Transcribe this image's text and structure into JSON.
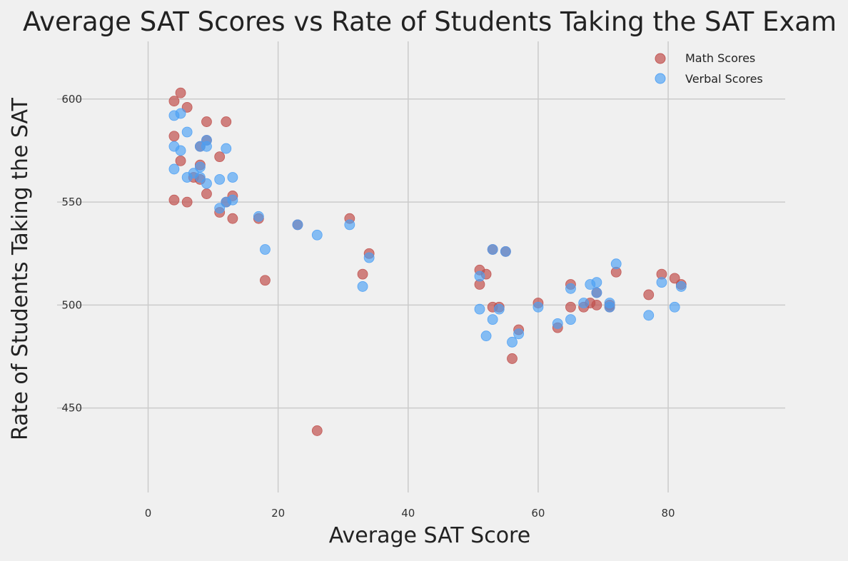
{
  "chart_data": {
    "type": "scatter",
    "title": "Average SAT Scores vs Rate of Students Taking the SAT Exam",
    "xlabel": "Average SAT Score",
    "ylabel": "Rate of Students Taking the SAT",
    "xlim": [
      -14,
      98
    ],
    "ylim": [
      409,
      628
    ],
    "xticks": [
      0,
      20,
      40,
      60,
      80
    ],
    "yticks": [
      450,
      500,
      550,
      600
    ],
    "grid": true,
    "legend_position": "top-right",
    "series": [
      {
        "name": "Math Scores",
        "color": "#c0504d",
        "points": [
          [
            4,
            599
          ],
          [
            5,
            603
          ],
          [
            6,
            596
          ],
          [
            4,
            582
          ],
          [
            9,
            589
          ],
          [
            12,
            589
          ],
          [
            8,
            577
          ],
          [
            9,
            580
          ],
          [
            11,
            572
          ],
          [
            5,
            570
          ],
          [
            8,
            568
          ],
          [
            7,
            562
          ],
          [
            8,
            561
          ],
          [
            4,
            551
          ],
          [
            6,
            550
          ],
          [
            9,
            554
          ],
          [
            12,
            550
          ],
          [
            13,
            553
          ],
          [
            11,
            545
          ],
          [
            13,
            542
          ],
          [
            17,
            542
          ],
          [
            23,
            539
          ],
          [
            31,
            542
          ],
          [
            18,
            512
          ],
          [
            33,
            515
          ],
          [
            34,
            525
          ],
          [
            26,
            439
          ],
          [
            53,
            527
          ],
          [
            55,
            526
          ],
          [
            51,
            517
          ],
          [
            52,
            515
          ],
          [
            51,
            510
          ],
          [
            53,
            499
          ],
          [
            54,
            499
          ],
          [
            57,
            488
          ],
          [
            56,
            474
          ],
          [
            60,
            501
          ],
          [
            63,
            489
          ],
          [
            65,
            510
          ],
          [
            65,
            499
          ],
          [
            67,
            499
          ],
          [
            68,
            501
          ],
          [
            69,
            506
          ],
          [
            69,
            500
          ],
          [
            71,
            500
          ],
          [
            71,
            499
          ],
          [
            72,
            516
          ],
          [
            77,
            505
          ],
          [
            79,
            515
          ],
          [
            81,
            513
          ],
          [
            82,
            510
          ]
        ]
      },
      {
        "name": "Verbal Scores",
        "color": "#4a9ff5",
        "points": [
          [
            4,
            592
          ],
          [
            5,
            593
          ],
          [
            6,
            584
          ],
          [
            4,
            577
          ],
          [
            5,
            575
          ],
          [
            8,
            577
          ],
          [
            9,
            577
          ],
          [
            9,
            580
          ],
          [
            12,
            576
          ],
          [
            4,
            566
          ],
          [
            6,
            562
          ],
          [
            7,
            564
          ],
          [
            8,
            567
          ],
          [
            8,
            562
          ],
          [
            9,
            559
          ],
          [
            11,
            561
          ],
          [
            13,
            562
          ],
          [
            11,
            547
          ],
          [
            12,
            550
          ],
          [
            13,
            551
          ],
          [
            17,
            543
          ],
          [
            18,
            527
          ],
          [
            23,
            539
          ],
          [
            26,
            534
          ],
          [
            31,
            539
          ],
          [
            33,
            509
          ],
          [
            34,
            523
          ],
          [
            51,
            514
          ],
          [
            51,
            498
          ],
          [
            52,
            485
          ],
          [
            53,
            493
          ],
          [
            53,
            527
          ],
          [
            54,
            498
          ],
          [
            55,
            526
          ],
          [
            56,
            482
          ],
          [
            57,
            486
          ],
          [
            60,
            499
          ],
          [
            63,
            491
          ],
          [
            65,
            508
          ],
          [
            65,
            493
          ],
          [
            67,
            501
          ],
          [
            68,
            510
          ],
          [
            69,
            511
          ],
          [
            69,
            506
          ],
          [
            71,
            501
          ],
          [
            71,
            499
          ],
          [
            72,
            520
          ],
          [
            77,
            495
          ],
          [
            79,
            511
          ],
          [
            81,
            499
          ],
          [
            82,
            509
          ]
        ]
      }
    ]
  }
}
